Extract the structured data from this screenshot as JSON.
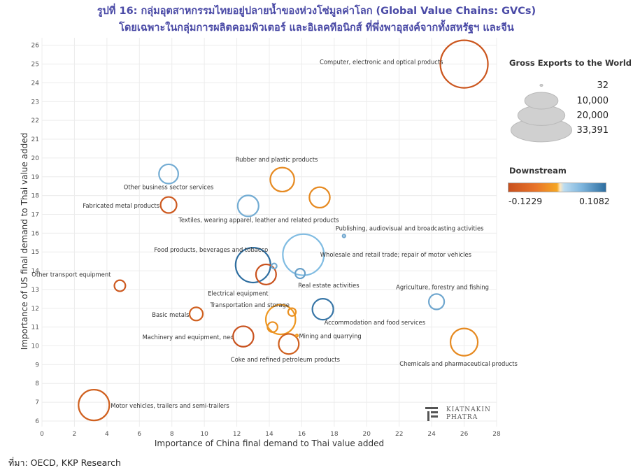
{
  "title_line1": "รูปที่ 16: กลุ่มอุตสาหกรรมไทยอยู่ปลายน้ำของห่วงโซ่มูลค่าโลก (Global Value Chains: GVCs)",
  "title_line2": "โดยเฉพาะในกลุ่มการผลิตคอมพิวเตอร์ และอิเลคทีอนิกส์ ที่พึ่งพาอุสงค์จากทั้งสหรัฐฯ และจีน",
  "source": "ที่มา: OECD, KKP Research",
  "logo": {
    "line1": "KIATNAKIN",
    "line2": "PHATRA"
  },
  "legend": {
    "size_title": "Gross Exports to the World",
    "size_values": [
      "32",
      "10,000",
      "20,000",
      "33,391"
    ],
    "color_title": "Downstream",
    "color_min": "-0.1229",
    "color_max": "0.1082"
  },
  "chart_data": {
    "type": "scatter",
    "xlabel": "Importance of China final demand to Thai value added",
    "ylabel": "Importance of US final demand to Thai value added",
    "xlim": [
      0,
      28
    ],
    "ylim": [
      5.7,
      26.4
    ],
    "xticks": [
      "0",
      "2",
      "4",
      "6",
      "8",
      "10",
      "12",
      "14",
      "16",
      "18",
      "20",
      "22",
      "24",
      "26",
      "28"
    ],
    "yticks": [
      "6",
      "7",
      "8",
      "9",
      "10",
      "11",
      "12",
      "13",
      "14",
      "15",
      "16",
      "17",
      "18",
      "19",
      "20",
      "21",
      "22",
      "23",
      "24",
      "25",
      "26"
    ],
    "grid": true,
    "size_range": [
      32,
      33391
    ],
    "color_range": [
      -0.1229,
      0.1082
    ],
    "colors": {
      "negative": "#c8501e",
      "mid": "#f5a623",
      "positive": "#2e6ea0"
    },
    "points": [
      {
        "label": "Computer, electronic and optical products",
        "x": 26.0,
        "y": 25.0,
        "size": 33391,
        "downstream": -0.115
      },
      {
        "label": "Rubber and plastic products",
        "x": 14.8,
        "y": 18.85,
        "size": 8500,
        "downstream": -0.04
      },
      {
        "label": "",
        "x": 17.1,
        "y": 17.9,
        "size": 6200,
        "downstream": -0.04
      },
      {
        "label": "Other business sector services",
        "x": 7.8,
        "y": 19.15,
        "size": 5500,
        "downstream": 0.04
      },
      {
        "label": "Fabricated metal products",
        "x": 7.8,
        "y": 17.5,
        "size": 3800,
        "downstream": -0.11
      },
      {
        "label": "Textiles, wearing apparel, leather and related products",
        "x": 12.7,
        "y": 17.45,
        "size": 6500,
        "downstream": 0.04
      },
      {
        "label": "Publishing, audiovisual and broadcasting activities",
        "x": 18.6,
        "y": 15.85,
        "size": 120,
        "downstream": 0.05
      },
      {
        "label": "Food products, beverages and tobacco",
        "x": 13.0,
        "y": 14.3,
        "size": 18000,
        "downstream": 0.108
      },
      {
        "label": "Wholesale and retail trade; repair of motor vehicles",
        "x": 16.1,
        "y": 14.85,
        "size": 25000,
        "downstream": 0.005
      },
      {
        "label": "",
        "x": 14.3,
        "y": 14.25,
        "size": 400,
        "downstream": 0.04
      },
      {
        "label": "Electrical equipment",
        "x": 13.8,
        "y": 13.8,
        "size": 6000,
        "downstream": -0.12
      },
      {
        "label": "Real estate activities",
        "x": 15.9,
        "y": 13.85,
        "size": 1400,
        "downstream": 0.06
      },
      {
        "label": "Other transport equipment",
        "x": 4.8,
        "y": 13.2,
        "size": 1800,
        "downstream": -0.11
      },
      {
        "label": "Agriculture, forestry and fishing",
        "x": 24.3,
        "y": 12.35,
        "size": 3500,
        "downstream": 0.05
      },
      {
        "label": "Transportation and storage",
        "x": 14.7,
        "y": 11.4,
        "size": 13000,
        "downstream": -0.02
      },
      {
        "label": "",
        "x": 15.4,
        "y": 11.8,
        "size": 900,
        "downstream": -0.03
      },
      {
        "label": "",
        "x": 14.2,
        "y": 11.0,
        "size": 1500,
        "downstream": -0.03
      },
      {
        "label": "Accommodation and food services",
        "x": 17.3,
        "y": 11.95,
        "size": 6500,
        "downstream": 0.1
      },
      {
        "label": "Basic metals",
        "x": 9.5,
        "y": 11.7,
        "size": 2600,
        "downstream": -0.1
      },
      {
        "label": "Machinery and equipment, nec",
        "x": 12.4,
        "y": 10.5,
        "size": 6200,
        "downstream": -0.12
      },
      {
        "label": "Mining and quarrying",
        "x": 15.7,
        "y": 10.55,
        "size": 40,
        "downstream": -0.02
      },
      {
        "label": "Coke and refined petroleum products",
        "x": 15.2,
        "y": 10.1,
        "size": 6000,
        "downstream": -0.1
      },
      {
        "label": "Chemicals and pharmaceutical products",
        "x": 26.0,
        "y": 10.2,
        "size": 11000,
        "downstream": -0.04
      },
      {
        "label": "Motor vehicles, trailers and semi-trailers",
        "x": 3.2,
        "y": 6.85,
        "size": 14000,
        "downstream": -0.1
      }
    ]
  }
}
